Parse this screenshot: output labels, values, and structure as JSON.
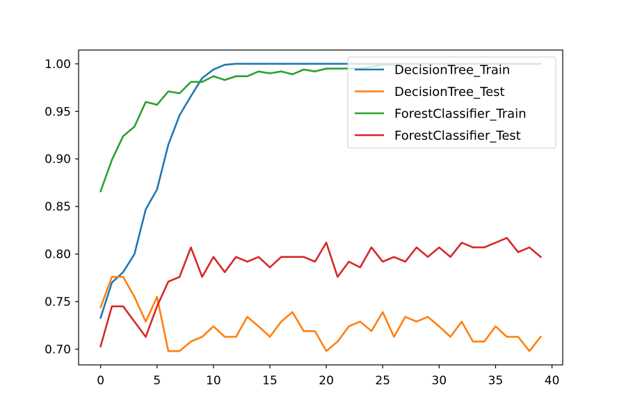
{
  "chart_data": {
    "type": "line",
    "title": "",
    "xlabel": "",
    "ylabel": "",
    "xlim": [
      -1.95,
      40.95
    ],
    "ylim": [
      0.6835,
      1.0145
    ],
    "xticks": [
      0,
      5,
      10,
      15,
      20,
      25,
      30,
      35,
      40
    ],
    "xtick_labels": [
      "0",
      "5",
      "10",
      "15",
      "20",
      "25",
      "30",
      "35",
      "40"
    ],
    "yticks": [
      0.7,
      0.75,
      0.8,
      0.85,
      0.9,
      0.95,
      1.0
    ],
    "ytick_labels": [
      "0.70",
      "0.75",
      "0.80",
      "0.85",
      "0.90",
      "0.95",
      "1.00"
    ],
    "grid": false,
    "legend_position": "top-right",
    "x": [
      0,
      1,
      2,
      3,
      4,
      5,
      6,
      7,
      8,
      9,
      10,
      11,
      12,
      13,
      14,
      15,
      16,
      17,
      18,
      19,
      20,
      21,
      22,
      23,
      24,
      25,
      26,
      27,
      28,
      29,
      30,
      31,
      32,
      33,
      34,
      35,
      36,
      37,
      38,
      39
    ],
    "series": [
      {
        "name": "DecisionTree_Train",
        "color": "#1f77b4",
        "values": [
          0.733,
          0.77,
          0.781,
          0.8,
          0.847,
          0.868,
          0.915,
          0.946,
          0.966,
          0.985,
          0.994,
          0.999,
          1.0,
          1.0,
          1.0,
          1.0,
          1.0,
          1.0,
          1.0,
          1.0,
          1.0,
          1.0,
          1.0,
          1.0,
          1.0,
          1.0,
          1.0,
          1.0,
          1.0,
          1.0,
          1.0,
          1.0,
          1.0,
          1.0,
          1.0,
          1.0,
          1.0,
          1.0,
          1.0,
          1.0
        ]
      },
      {
        "name": "DecisionTree_Test",
        "color": "#ff7f0e",
        "values": [
          0.744,
          0.776,
          0.776,
          0.755,
          0.729,
          0.755,
          0.698,
          0.698,
          0.708,
          0.713,
          0.724,
          0.713,
          0.713,
          0.734,
          0.724,
          0.713,
          0.729,
          0.739,
          0.719,
          0.719,
          0.698,
          0.708,
          0.724,
          0.729,
          0.719,
          0.739,
          0.713,
          0.734,
          0.729,
          0.734,
          0.724,
          0.713,
          0.729,
          0.708,
          0.708,
          0.724,
          0.713,
          0.713,
          0.698,
          0.713
        ]
      },
      {
        "name": "ForestClassifier_Train",
        "color": "#2ca02c",
        "values": [
          0.866,
          0.899,
          0.924,
          0.934,
          0.96,
          0.957,
          0.971,
          0.969,
          0.981,
          0.981,
          0.987,
          0.983,
          0.987,
          0.987,
          0.992,
          0.99,
          0.992,
          0.989,
          0.994,
          0.992,
          0.995,
          0.995,
          0.995,
          0.995,
          0.997,
          0.999,
          0.999,
          1.0,
          1.0,
          1.0,
          1.0,
          1.0,
          1.0,
          1.0,
          1.0,
          1.0,
          1.0,
          1.0,
          1.0,
          1.0
        ]
      },
      {
        "name": "ForestClassifier_Test",
        "color": "#d62728",
        "values": [
          0.703,
          0.745,
          0.745,
          0.729,
          0.713,
          0.745,
          0.771,
          0.776,
          0.807,
          0.776,
          0.797,
          0.781,
          0.797,
          0.792,
          0.797,
          0.786,
          0.797,
          0.797,
          0.797,
          0.792,
          0.812,
          0.776,
          0.792,
          0.786,
          0.807,
          0.792,
          0.797,
          0.792,
          0.807,
          0.797,
          0.807,
          0.797,
          0.812,
          0.807,
          0.807,
          0.812,
          0.817,
          0.802,
          0.807,
          0.797
        ]
      }
    ]
  }
}
